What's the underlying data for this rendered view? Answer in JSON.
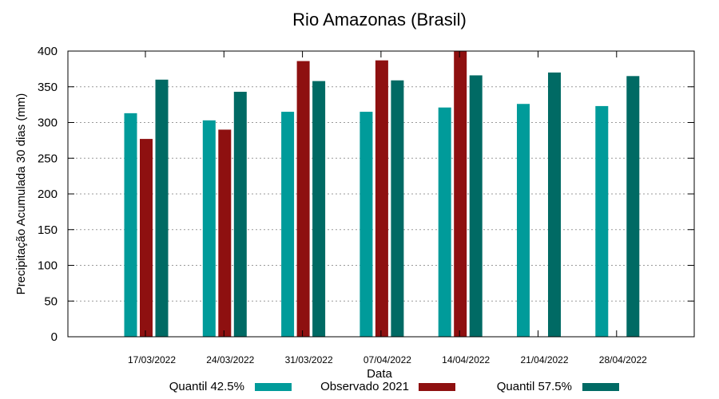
{
  "chart_data": {
    "type": "bar",
    "title": "Rio Amazonas (Brasil)",
    "xlabel": "Data",
    "ylabel": "Precipitação Acumulada 30 dias (mm)",
    "ylim": [
      0,
      400
    ],
    "yticks": [
      0,
      50,
      100,
      150,
      200,
      250,
      300,
      350,
      400
    ],
    "grid": true,
    "legend_position": "bottom",
    "categories": [
      "17/03/2022",
      "24/03/2022",
      "31/03/2022",
      "07/04/2022",
      "14/04/2022",
      "21/04/2022",
      "28/04/2022"
    ],
    "series": [
      {
        "name": "Quantil 42.5%",
        "color": "#009b9a",
        "values": [
          313,
          303,
          315,
          315,
          321,
          326,
          323
        ]
      },
      {
        "name": "Observado 2021",
        "color": "#8e1010",
        "values": [
          277,
          290,
          386,
          387,
          400,
          null,
          null
        ]
      },
      {
        "name": "Quantil 57.5%",
        "color": "#006a64",
        "values": [
          360,
          343,
          358,
          359,
          366,
          370,
          365
        ]
      }
    ]
  }
}
